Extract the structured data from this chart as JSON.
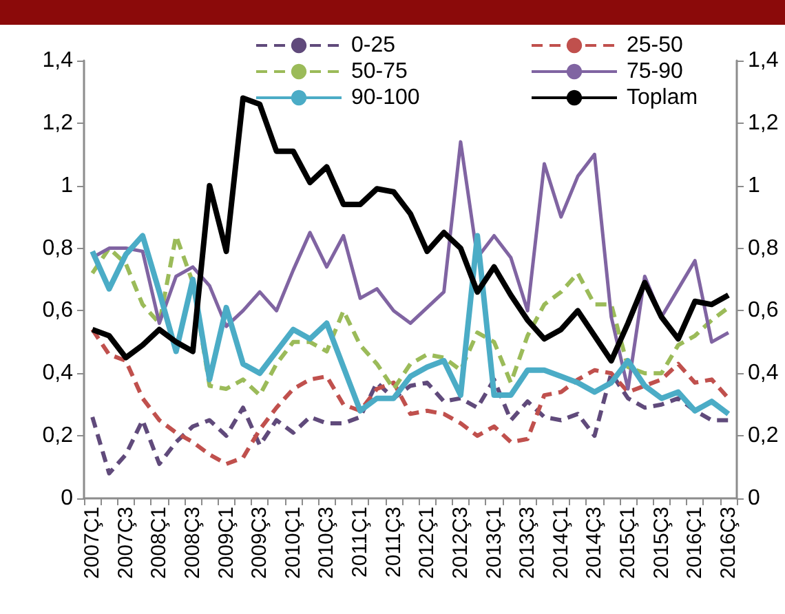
{
  "chart_data": {
    "type": "line",
    "categories": [
      "2007Ç1",
      null,
      "2007Ç3",
      null,
      "2008Ç1",
      null,
      "2008Ç3",
      null,
      "2009Ç1",
      null,
      "2009Ç3",
      null,
      "2010Ç1",
      null,
      "2010Ç3",
      null,
      "2011Ç1",
      null,
      "2011Ç3",
      null,
      "2012Ç1",
      null,
      "2012Ç3",
      null,
      "2013Ç1",
      null,
      "2013Ç3",
      null,
      "2014Ç1",
      null,
      "2014Ç3",
      null,
      "2015Ç1",
      null,
      "2015Ç3",
      null,
      "2016Ç1",
      null,
      "2016Ç3"
    ],
    "series": [
      {
        "name": "0-25",
        "color": "#604a7b",
        "line_style": "dashed",
        "values": [
          0.26,
          0.08,
          0.14,
          0.25,
          0.11,
          0.18,
          0.23,
          0.25,
          0.2,
          0.29,
          0.17,
          0.25,
          0.21,
          0.26,
          0.24,
          0.24,
          0.26,
          0.37,
          0.32,
          0.36,
          0.37,
          0.31,
          0.32,
          0.29,
          0.38,
          0.25,
          0.31,
          0.26,
          0.25,
          0.27,
          0.2,
          0.4,
          0.32,
          0.29,
          0.3,
          0.32,
          0.28,
          0.25,
          0.25
        ]
      },
      {
        "name": "25-50",
        "color": "#c0504d",
        "line_style": "dashed",
        "values": [
          0.54,
          0.46,
          0.44,
          0.32,
          0.25,
          0.21,
          0.18,
          0.14,
          0.11,
          0.13,
          0.22,
          0.29,
          0.35,
          0.38,
          0.39,
          0.3,
          0.28,
          0.35,
          0.37,
          0.27,
          0.28,
          0.27,
          0.24,
          0.2,
          0.23,
          0.18,
          0.19,
          0.33,
          0.34,
          0.38,
          0.41,
          0.4,
          0.34,
          0.36,
          0.38,
          0.43,
          0.37,
          0.38,
          0.32
        ]
      },
      {
        "name": "50-75",
        "color": "#9bbb59",
        "line_style": "dashed",
        "values": [
          0.72,
          0.8,
          0.75,
          0.62,
          0.56,
          0.84,
          0.69,
          0.36,
          0.35,
          0.38,
          0.33,
          0.43,
          0.5,
          0.5,
          0.47,
          0.6,
          0.49,
          0.43,
          0.35,
          0.43,
          0.46,
          0.45,
          0.41,
          0.53,
          0.5,
          0.37,
          0.52,
          0.62,
          0.66,
          0.72,
          0.62,
          0.62,
          0.42,
          0.4,
          0.4,
          0.49,
          0.52,
          0.57,
          0.61
        ]
      },
      {
        "name": "75-90",
        "color": "#8064a2",
        "line_style": "solid",
        "values": [
          0.77,
          0.8,
          0.8,
          0.79,
          0.56,
          0.71,
          0.74,
          0.68,
          0.55,
          0.6,
          0.66,
          0.6,
          0.73,
          0.85,
          0.74,
          0.84,
          0.64,
          0.67,
          0.6,
          0.56,
          0.61,
          0.66,
          1.14,
          0.77,
          0.84,
          0.77,
          0.6,
          1.07,
          0.9,
          1.03,
          1.1,
          0.58,
          0.35,
          0.71,
          0.58,
          0.67,
          0.76,
          0.5,
          0.53
        ]
      },
      {
        "name": "90-100",
        "color": "#4bacc6",
        "line_style": "solid",
        "values": [
          0.79,
          0.67,
          0.78,
          0.84,
          0.66,
          0.47,
          0.7,
          0.38,
          0.61,
          0.43,
          0.4,
          0.47,
          0.54,
          0.51,
          0.56,
          0.42,
          0.28,
          0.32,
          0.32,
          0.39,
          0.42,
          0.44,
          0.33,
          0.84,
          0.33,
          0.33,
          0.41,
          0.41,
          0.39,
          0.37,
          0.34,
          0.37,
          0.44,
          0.36,
          0.32,
          0.34,
          0.28,
          0.31,
          0.27
        ]
      },
      {
        "name": "Toplam",
        "color": "#000000",
        "line_style": "solid",
        "values": [
          0.54,
          0.52,
          0.45,
          0.49,
          0.54,
          0.5,
          0.47,
          1.0,
          0.79,
          1.28,
          1.26,
          1.11,
          1.11,
          1.01,
          1.06,
          0.94,
          0.94,
          0.99,
          0.98,
          0.91,
          0.79,
          0.85,
          0.8,
          0.66,
          0.74,
          0.65,
          0.57,
          0.51,
          0.54,
          0.6,
          0.52,
          0.44,
          0.56,
          0.69,
          0.58,
          0.51,
          0.63,
          0.62,
          0.65
        ]
      }
    ],
    "ylim": [
      0,
      1.4
    ],
    "yticks": [
      0,
      {
        "value": 0.2,
        "label": "0,2"
      },
      {
        "value": 0.4,
        "label": "0,4"
      },
      {
        "value": 0.6,
        "label": "0,6"
      },
      {
        "value": 0.8,
        "label": "0,8"
      },
      1,
      {
        "value": 1.2,
        "label": "1,2"
      },
      {
        "value": 1.4,
        "label": "1,4"
      }
    ],
    "y2lim": [
      0,
      1.4
    ],
    "y2ticks": [
      0,
      {
        "value": 0.2,
        "label": "0,2"
      },
      {
        "value": 0.4,
        "label": "0,4"
      },
      {
        "value": 0.6,
        "label": "0,6"
      },
      {
        "value": 0.8,
        "label": "0,8"
      },
      1,
      {
        "value": 1.2,
        "label": "1,2"
      },
      {
        "value": 1.4,
        "label": "1,4"
      }
    ],
    "legend": "top",
    "grid": false,
    "marker": "none"
  }
}
